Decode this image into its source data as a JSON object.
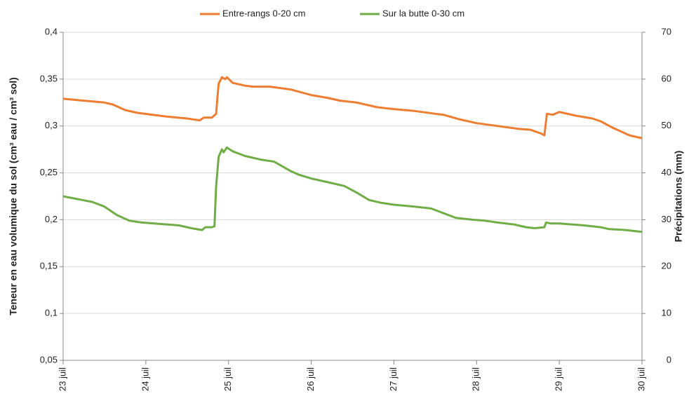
{
  "chart_data": {
    "type": "line",
    "y_label": "Teneur en eau volumique du sol (cm³ eau / cm³ sol)",
    "y2_label": "Précipitations (mm)",
    "xlim": [
      23,
      30
    ],
    "xticks": [
      {
        "value": 23,
        "label": "23 juil"
      },
      {
        "value": 24,
        "label": "24 juil"
      },
      {
        "value": 25,
        "label": "25 juil"
      },
      {
        "value": 26,
        "label": "26 juil"
      },
      {
        "value": 27,
        "label": "27 juil"
      },
      {
        "value": 28,
        "label": "28 juil"
      },
      {
        "value": 29,
        "label": "29 juil"
      },
      {
        "value": 30,
        "label": "30 juil"
      }
    ],
    "ylim": [
      0.05,
      0.4
    ],
    "yticks": [
      {
        "value": 0.05,
        "label": "0,05"
      },
      {
        "value": 0.1,
        "label": "0,1"
      },
      {
        "value": 0.15,
        "label": "0,15"
      },
      {
        "value": 0.2,
        "label": "0,2"
      },
      {
        "value": 0.25,
        "label": "0,25"
      },
      {
        "value": 0.3,
        "label": "0,3"
      },
      {
        "value": 0.35,
        "label": "0,35"
      },
      {
        "value": 0.4,
        "label": "0,4"
      }
    ],
    "y2lim": [
      0,
      70
    ],
    "y2ticks": [
      0,
      10,
      20,
      30,
      40,
      50,
      60,
      70
    ],
    "grid": true,
    "legend": "top",
    "series": [
      {
        "name": "Entre-rangs 0-20 cm",
        "color": "#ed7d31",
        "x": [
          23.0,
          23.5,
          23.6,
          23.75,
          23.9,
          24.25,
          24.5,
          24.65,
          24.7,
          24.8,
          24.85,
          24.88,
          24.92,
          24.96,
          24.98,
          25.05,
          25.2,
          25.3,
          25.5,
          25.75,
          26.0,
          26.2,
          26.35,
          26.55,
          26.8,
          27.0,
          27.25,
          27.5,
          27.6,
          27.8,
          28.0,
          28.25,
          28.5,
          28.65,
          28.78,
          28.82,
          28.85,
          28.92,
          29.0,
          29.2,
          29.4,
          29.5,
          29.65,
          29.85,
          30.0
        ],
        "values": [
          0.329,
          0.325,
          0.323,
          0.317,
          0.314,
          0.31,
          0.308,
          0.306,
          0.309,
          0.309,
          0.313,
          0.345,
          0.352,
          0.35,
          0.352,
          0.346,
          0.343,
          0.342,
          0.342,
          0.339,
          0.333,
          0.33,
          0.327,
          0.325,
          0.32,
          0.318,
          0.316,
          0.313,
          0.312,
          0.307,
          0.303,
          0.3,
          0.297,
          0.296,
          0.292,
          0.29,
          0.313,
          0.312,
          0.315,
          0.311,
          0.308,
          0.305,
          0.298,
          0.29,
          0.287
        ]
      },
      {
        "name": "Sur la butte 0-30 cm",
        "color": "#70ad47",
        "x": [
          23.0,
          23.35,
          23.5,
          23.65,
          23.8,
          23.95,
          24.25,
          24.4,
          24.55,
          24.68,
          24.72,
          24.8,
          24.83,
          24.85,
          24.88,
          24.92,
          24.94,
          24.98,
          25.05,
          25.2,
          25.4,
          25.55,
          25.65,
          25.75,
          25.85,
          26.0,
          26.2,
          26.4,
          26.55,
          26.7,
          26.85,
          27.0,
          27.25,
          27.45,
          27.6,
          27.75,
          27.95,
          28.1,
          28.25,
          28.45,
          28.6,
          28.7,
          28.82,
          28.84,
          28.9,
          29.0,
          29.3,
          29.5,
          29.6,
          29.8,
          30.0
        ],
        "values": [
          0.225,
          0.219,
          0.214,
          0.205,
          0.199,
          0.197,
          0.195,
          0.194,
          0.191,
          0.189,
          0.192,
          0.192,
          0.193,
          0.235,
          0.267,
          0.275,
          0.272,
          0.277,
          0.273,
          0.268,
          0.264,
          0.262,
          0.257,
          0.252,
          0.248,
          0.244,
          0.24,
          0.236,
          0.229,
          0.221,
          0.218,
          0.216,
          0.214,
          0.212,
          0.207,
          0.202,
          0.2,
          0.199,
          0.197,
          0.195,
          0.192,
          0.191,
          0.192,
          0.197,
          0.196,
          0.196,
          0.194,
          0.192,
          0.19,
          0.189,
          0.187
        ]
      }
    ]
  }
}
